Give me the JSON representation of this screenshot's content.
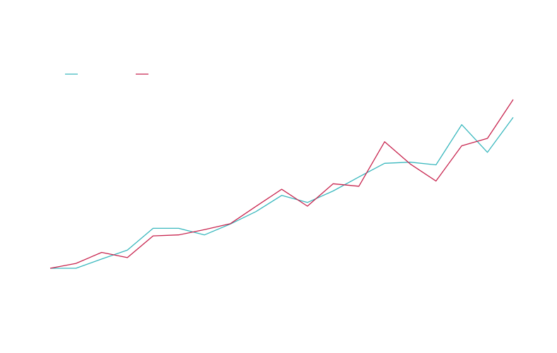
{
  "chart_data": {
    "type": "line",
    "title": "",
    "xlabel": "",
    "ylabel": "",
    "grid": false,
    "legend": "top-left",
    "x": [
      0,
      1,
      2,
      3,
      4,
      5,
      6,
      7,
      8,
      9,
      10,
      11,
      12,
      13,
      14,
      15,
      16,
      17,
      18
    ],
    "xlim": [
      0,
      18
    ],
    "ylim": [
      0,
      100
    ],
    "series": [
      {
        "name": "",
        "color": "#3ab8be",
        "values": [
          0,
          0,
          5.5,
          10.8,
          23.7,
          23.7,
          19.8,
          26.2,
          33.6,
          43.2,
          39.0,
          45.8,
          54.1,
          62.2,
          62.9,
          61.3,
          85.1,
          68.7,
          89.4
        ]
      },
      {
        "name": "",
        "color": "#c8254f",
        "values": [
          0,
          2.9,
          9.4,
          6.3,
          19.2,
          19.8,
          22.9,
          26.4,
          36.7,
          46.8,
          36.8,
          50.1,
          48.6,
          75.0,
          61.8,
          51.7,
          72.6,
          77.0,
          100.0
        ]
      }
    ]
  }
}
